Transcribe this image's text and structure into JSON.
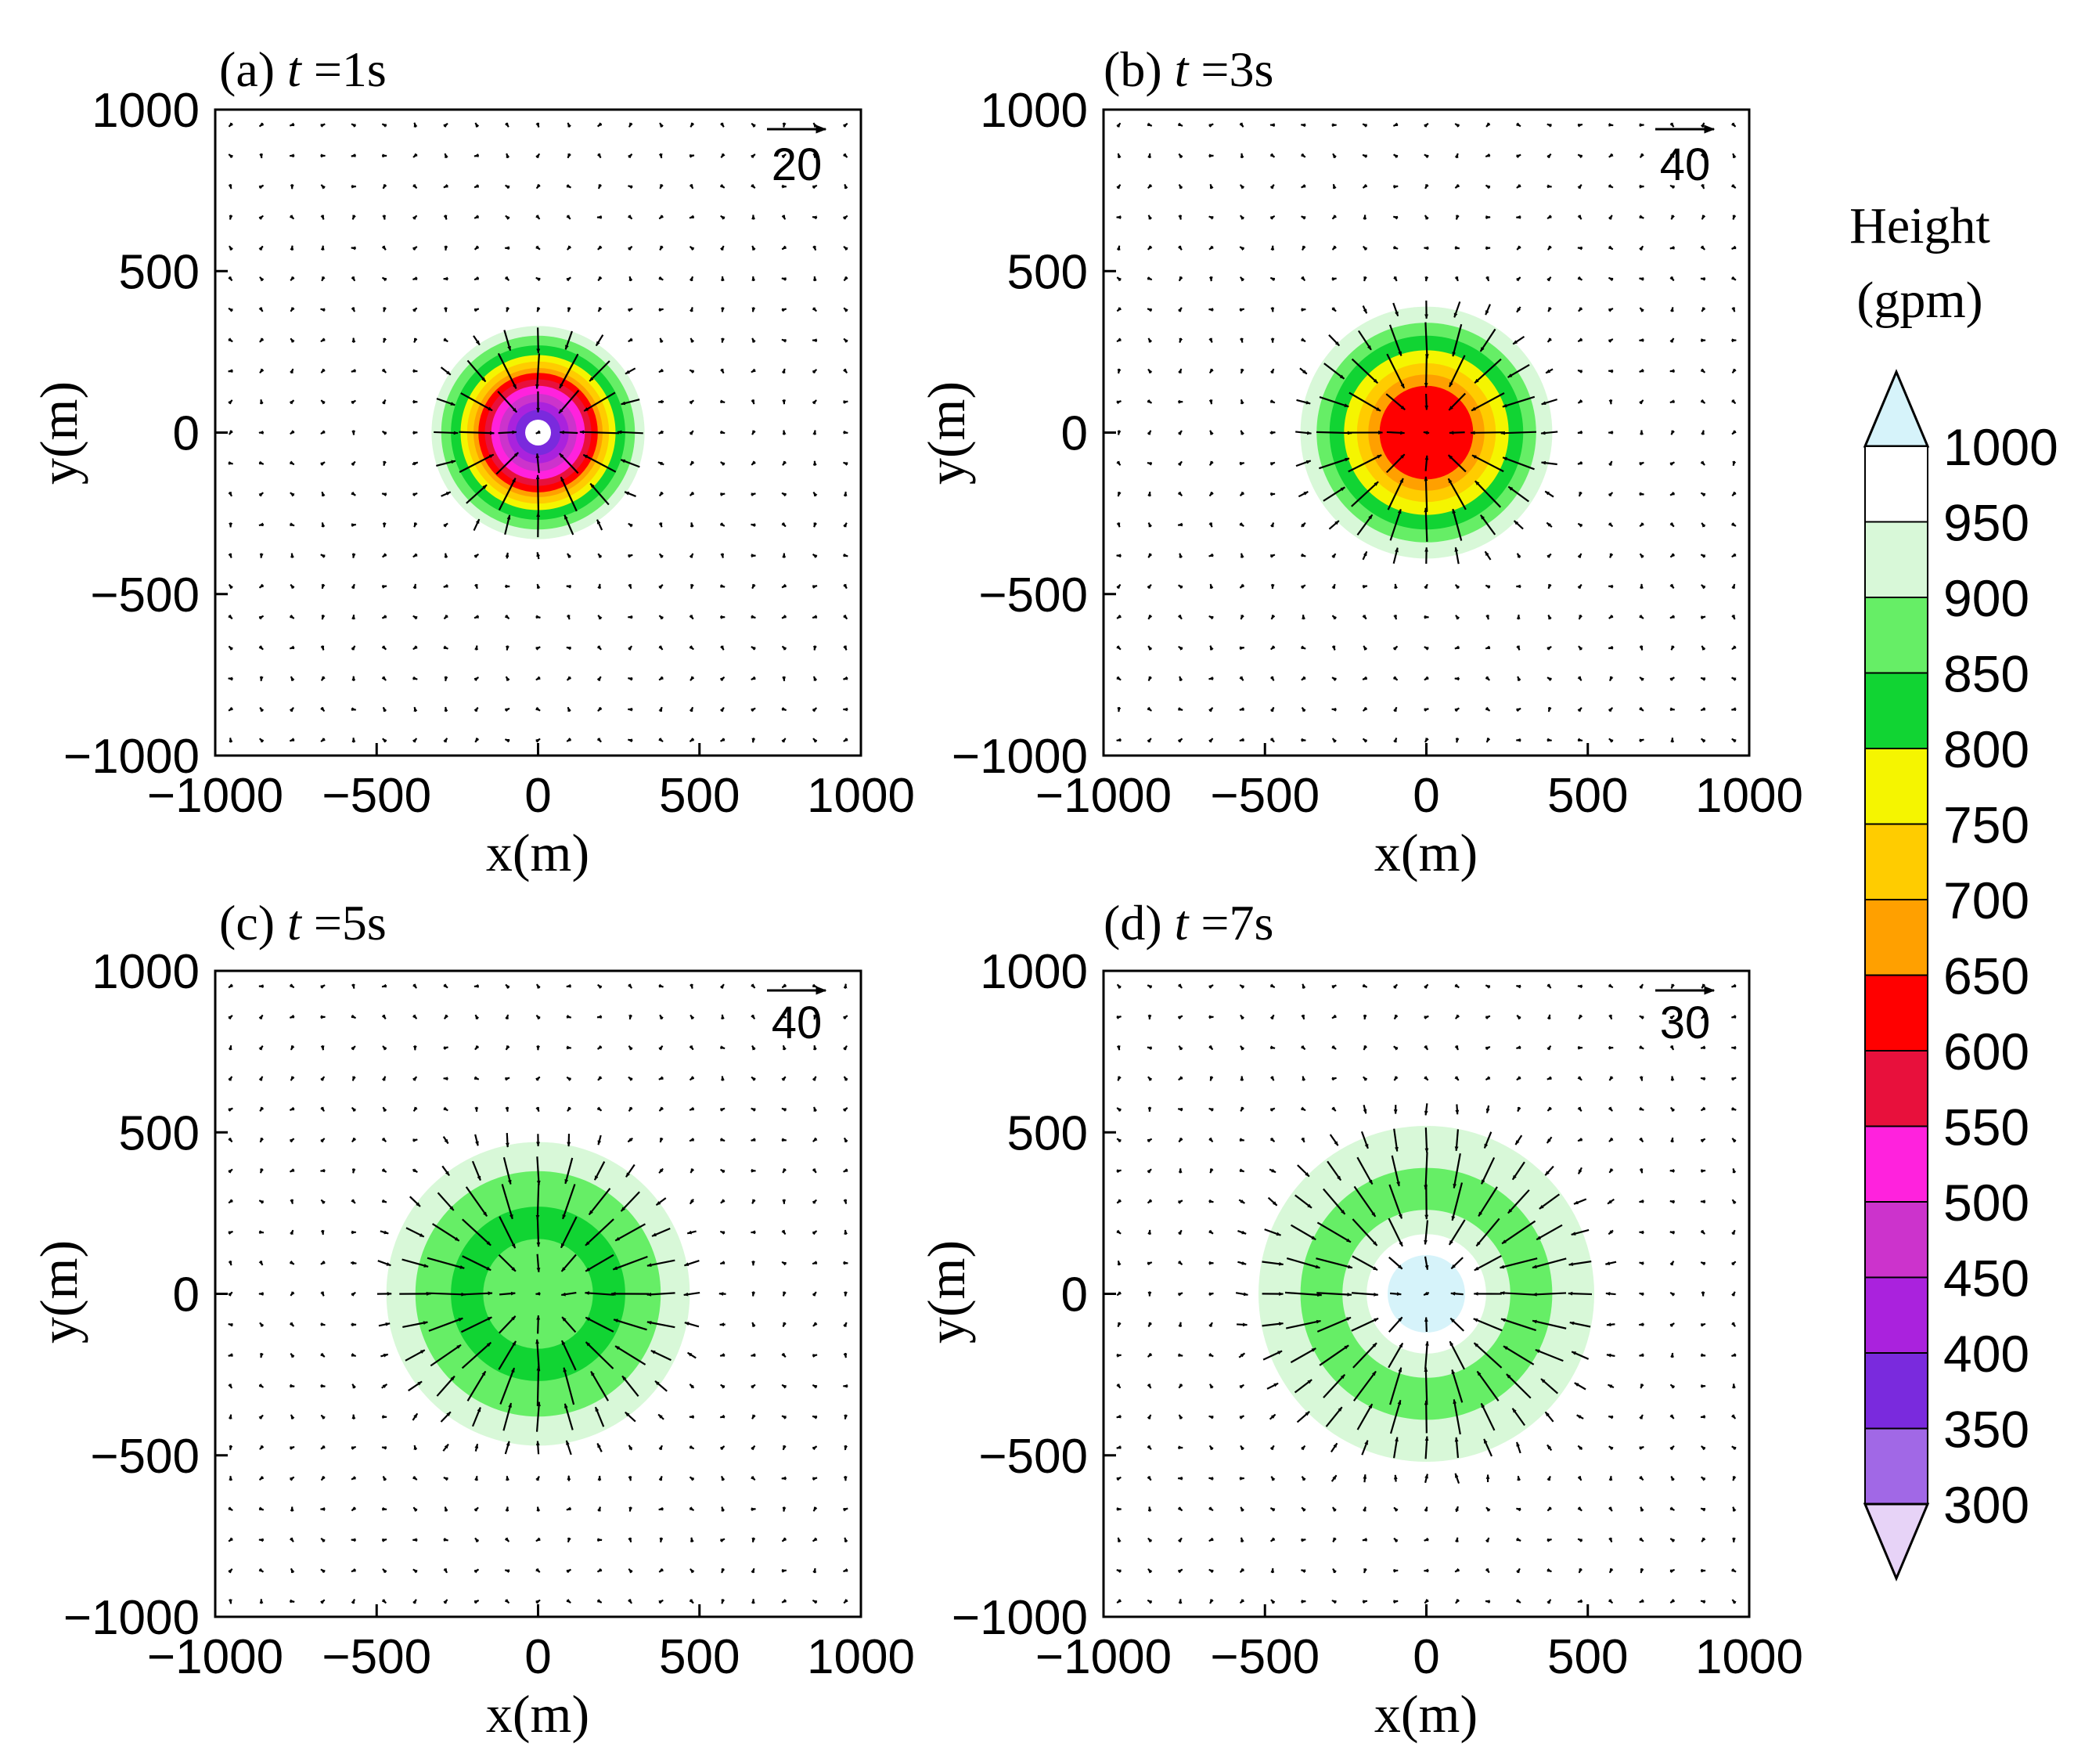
{
  "chart_data": [
    {
      "type": "contour_vector",
      "panel": "a",
      "title_prefix": "(a) ",
      "title_var": "t",
      "title_suffix": " =1s",
      "xlabel": "x(m)",
      "ylabel": "y(m)",
      "xlim": [
        -1000,
        1000
      ],
      "ylim": [
        -1000,
        1000
      ],
      "xticks": [
        -1000,
        -500,
        0,
        500,
        1000
      ],
      "yticks": [
        -1000,
        -500,
        0,
        500,
        1000
      ],
      "xtick_labels": [
        "−1000",
        "−500",
        "0",
        "500",
        "1000"
      ],
      "ytick_labels": [
        "−1000",
        "−500",
        "0",
        "500",
        "1000"
      ],
      "reference_vector": "20",
      "reference_magnitude": 20,
      "height_rings": [
        {
          "radius": 380,
          "value": 950
        },
        {
          "radius": 330,
          "value": 900
        },
        {
          "radius": 300,
          "value": 850
        },
        {
          "radius": 270,
          "value": 800
        },
        {
          "radius": 240,
          "value": 750
        },
        {
          "radius": 220,
          "value": 700
        },
        {
          "radius": 200,
          "value": 650
        },
        {
          "radius": 185,
          "value": 600
        },
        {
          "radius": 165,
          "value": 550
        },
        {
          "radius": 145,
          "value": 500
        },
        {
          "radius": 120,
          "value": 450
        },
        {
          "radius": 95,
          "value": 400
        },
        {
          "radius": 70,
          "value": 350
        },
        {
          "radius": 40,
          "value": 950
        }
      ],
      "wind": {
        "peak_speed": 25,
        "peak_radius": 200,
        "spread": 130,
        "direction": "inward",
        "outer_noise": 3
      }
    },
    {
      "type": "contour_vector",
      "panel": "b",
      "title_prefix": "(b) ",
      "title_var": "t",
      "title_suffix": " =3s",
      "xlabel": "x(m)",
      "ylabel": "y(m)",
      "xlim": [
        -1000,
        1000
      ],
      "ylim": [
        -1000,
        1000
      ],
      "xticks": [
        -1000,
        -500,
        0,
        500,
        1000
      ],
      "yticks": [
        -1000,
        -500,
        0,
        500,
        1000
      ],
      "xtick_labels": [
        "−1000",
        "−500",
        "0",
        "500",
        "1000"
      ],
      "ytick_labels": [
        "−1000",
        "−500",
        "0",
        "500",
        "1000"
      ],
      "reference_vector": "40",
      "reference_magnitude": 40,
      "height_rings": [
        {
          "radius": 470,
          "value": 950
        },
        {
          "radius": 390,
          "value": 900
        },
        {
          "radius": 340,
          "value": 850
        },
        {
          "radius": 300,
          "value": 800
        },
        {
          "radius": 255,
          "value": 750
        },
        {
          "radius": 215,
          "value": 700
        },
        {
          "radius": 180,
          "value": 650
        },
        {
          "radius": 145,
          "value": 600
        }
      ],
      "wind": {
        "peak_speed": 30,
        "peak_radius": 240,
        "spread": 160,
        "direction": "inward",
        "outer_noise": 3
      }
    },
    {
      "type": "contour_vector",
      "panel": "c",
      "title_prefix": "(c) ",
      "title_var": "t",
      "title_suffix": " =5s",
      "xlabel": "x(m)",
      "ylabel": "y(m)",
      "xlim": [
        -1000,
        1000
      ],
      "ylim": [
        -1000,
        1000
      ],
      "xticks": [
        -1000,
        -500,
        0,
        500,
        1000
      ],
      "yticks": [
        -1000,
        -500,
        0,
        500,
        1000
      ],
      "xtick_labels": [
        "−1000",
        "−500",
        "0",
        "500",
        "1000"
      ],
      "ytick_labels": [
        "−1000",
        "−500",
        "0",
        "500",
        "1000"
      ],
      "reference_vector": "40",
      "reference_magnitude": 40,
      "height_rings": [
        {
          "radius": 560,
          "value": 950
        },
        {
          "radius": 470,
          "value": 900
        },
        {
          "radius": 380,
          "value": 850
        },
        {
          "radius": 270,
          "value": 800
        },
        {
          "radius": 170,
          "value": 850
        }
      ],
      "wind": {
        "peak_speed": 24,
        "peak_radius": 280,
        "spread": 200,
        "direction": "inward",
        "outer_noise": 3
      }
    },
    {
      "type": "contour_vector",
      "panel": "d",
      "title_prefix": "(d) ",
      "title_var": "t",
      "title_suffix": " =7s",
      "xlabel": "x(m)",
      "ylabel": "y(m)",
      "xlim": [
        -1000,
        1000
      ],
      "ylim": [
        -1000,
        1000
      ],
      "xticks": [
        -1000,
        -500,
        0,
        500,
        1000
      ],
      "yticks": [
        -1000,
        -500,
        0,
        500,
        1000
      ],
      "xtick_labels": [
        "−1000",
        "−500",
        "0",
        "500",
        "1000"
      ],
      "ytick_labels": [
        "−1000",
        "−500",
        "0",
        "500",
        "1000"
      ],
      "reference_vector": "30",
      "reference_magnitude": 30,
      "height_rings": [
        {
          "radius": 640,
          "value": 950
        },
        {
          "radius": 520,
          "value": 900
        },
        {
          "radius": 390,
          "value": 850
        },
        {
          "radius": 260,
          "value": 900
        },
        {
          "radius": 185,
          "value": 950
        },
        {
          "radius": 120,
          "value": 1000
        }
      ],
      "wind": {
        "peak_speed": 22,
        "peak_radius": 320,
        "spread": 220,
        "direction": "inward",
        "outer_noise": 3
      }
    }
  ],
  "colorbar": {
    "title_line1": "Height",
    "title_line2": "(gpm)",
    "tick_labels": [
      "1000",
      "950",
      "900",
      "850",
      "800",
      "750",
      "700",
      "650",
      "600",
      "550",
      "500",
      "450",
      "400",
      "350",
      "300"
    ],
    "segments": [
      {
        "value": 950,
        "color": "#ffffff"
      },
      {
        "value": 900,
        "color": "#d8f8d8"
      },
      {
        "value": 850,
        "color": "#66ee66"
      },
      {
        "value": 800,
        "color": "#11d433"
      },
      {
        "value": 750,
        "color": "#f5f500"
      },
      {
        "value": 700,
        "color": "#ffcc00"
      },
      {
        "value": 650,
        "color": "#ffa000"
      },
      {
        "value": 600,
        "color": "#ff0000"
      },
      {
        "value": 550,
        "color": "#e8103c"
      },
      {
        "value": 500,
        "color": "#ff22dd"
      },
      {
        "value": 450,
        "color": "#cc33cc"
      },
      {
        "value": 400,
        "color": "#aa22dd"
      },
      {
        "value": 350,
        "color": "#7a2add"
      },
      {
        "value": 300,
        "color": "#a168e6"
      }
    ],
    "above_color": "#d6f3fa",
    "below_color": "#e7d3f7",
    "value_colors": {
      "300": "#a168e6",
      "350": "#7a2add",
      "400": "#aa22dd",
      "450": "#cc33cc",
      "500": "#ff22dd",
      "550": "#e8103c",
      "600": "#ff0000",
      "650": "#ffa000",
      "700": "#ffcc00",
      "750": "#f5f500",
      "800": "#11d433",
      "850": "#66ee66",
      "900": "#d8f8d8",
      "950": "#ffffff",
      "1000": "#d6f3fa"
    }
  }
}
